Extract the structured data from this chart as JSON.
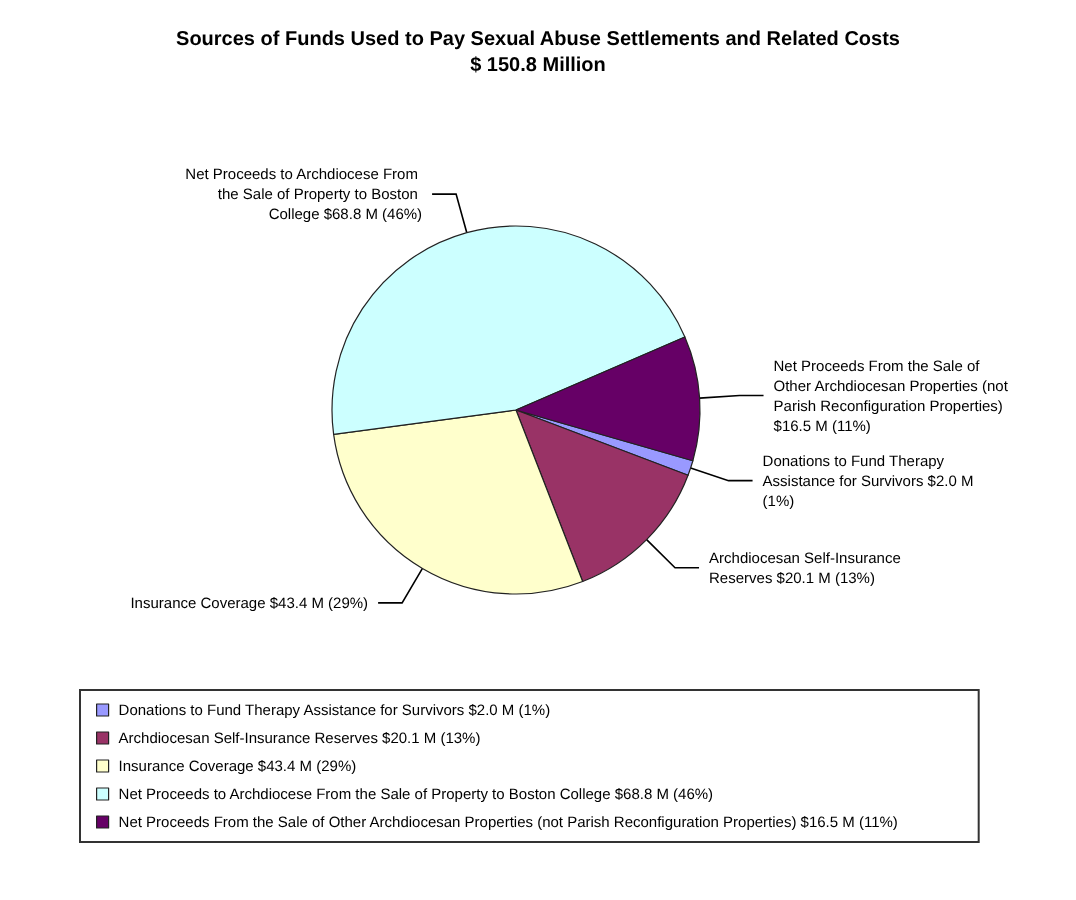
{
  "chart_data": {
    "type": "pie",
    "title": "Sources of Funds Used to Pay Sexual Abuse Settlements and Related Costs",
    "subtitle": "$ 150.8 Million",
    "categories": [
      "Donations to Fund Therapy Assistance for Survivors",
      "Archdiocesan Self-Insurance Reserves",
      "Insurance Coverage",
      "Net Proceeds to Archdiocese From the Sale of Property to Boston College",
      "Net Proceeds From the Sale of Other Archdiocesan Properties (not Parish Reconfiguration Properties)"
    ],
    "values": [
      2.0,
      20.1,
      43.4,
      68.8,
      16.5
    ],
    "value_labels": [
      "$2.0 M (1%)",
      "$20.1 M (13%)",
      "$43.4 M (29%)",
      "$68.8 M (46%)",
      "$16.5 M (11%)"
    ],
    "colors": [
      "#9999ff",
      "#993366",
      "#ffffcc",
      "#ccffff",
      "#660066"
    ],
    "legend": "bottom"
  }
}
